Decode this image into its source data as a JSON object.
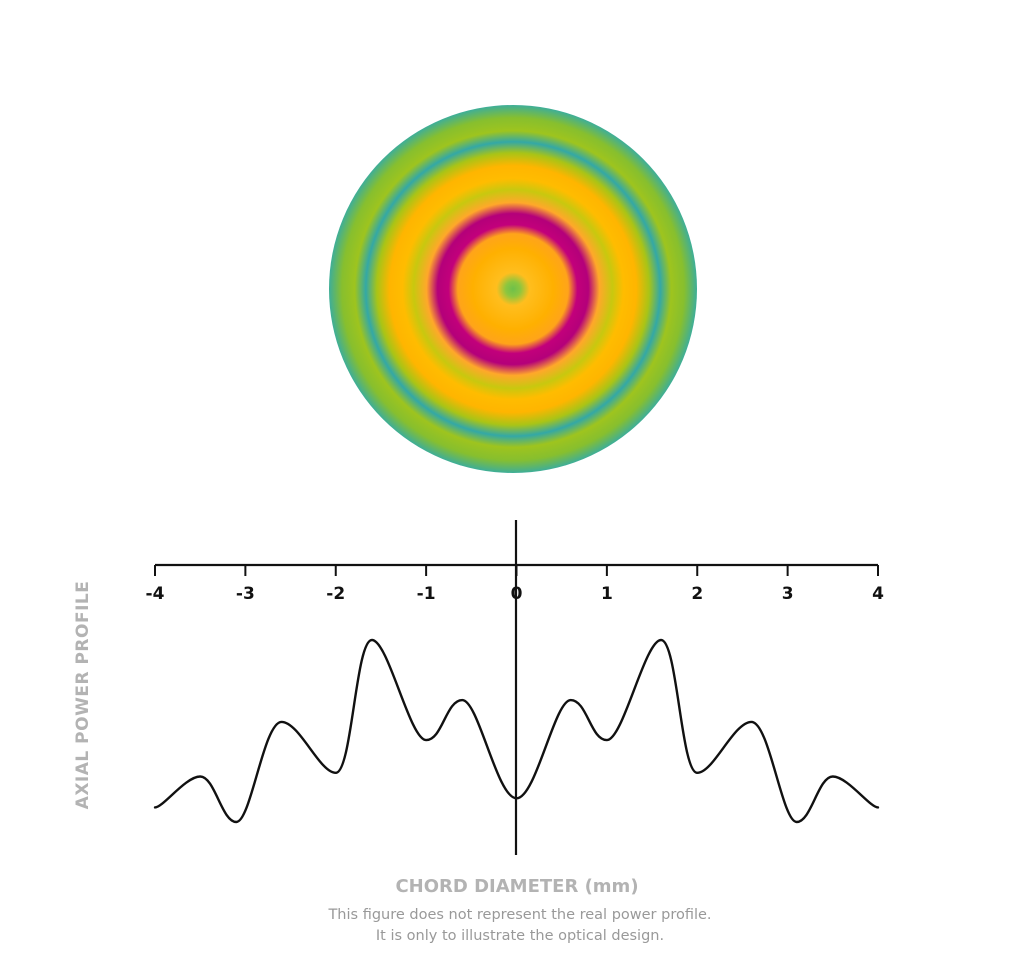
{
  "chart_data": {
    "type": "line",
    "xlabel": "CHORD DIAMETER (mm)",
    "ylabel": "AXIAL POWER PROFILE",
    "xlim": [
      -4,
      4
    ],
    "x_ticks": [
      -4,
      -3,
      -2,
      -1,
      0,
      1,
      2,
      3,
      4
    ],
    "x_tick_labels": [
      "-4",
      "-3",
      "-2",
      "-1",
      "0",
      "1",
      "2",
      "3",
      "4"
    ],
    "grid": false,
    "line_color": "#111111",
    "series": [
      {
        "x": [
          -4.0,
          -3.5,
          -3.1,
          -2.6,
          -2.0,
          -1.6,
          -1.0,
          -0.6,
          0.0,
          0.6,
          1.0,
          1.6,
          2.0,
          2.6,
          3.1,
          3.5,
          4.0
        ],
        "values": [
          0.08,
          0.25,
          0.0,
          0.55,
          0.27,
          1.0,
          0.45,
          0.67,
          0.13,
          0.67,
          0.45,
          1.0,
          0.27,
          0.55,
          0.0,
          0.25,
          0.08
        ]
      }
    ],
    "notes": [
      "This figure does not represent the real power profile.",
      "It is only to illustrate the optical design."
    ],
    "lens_map": {
      "type": "radial-colormap",
      "ring_colors": [
        "#7fc241",
        "#ffb400",
        "#b3007a",
        "#a8c415",
        "#30a6a8",
        "#3fb097"
      ]
    }
  }
}
